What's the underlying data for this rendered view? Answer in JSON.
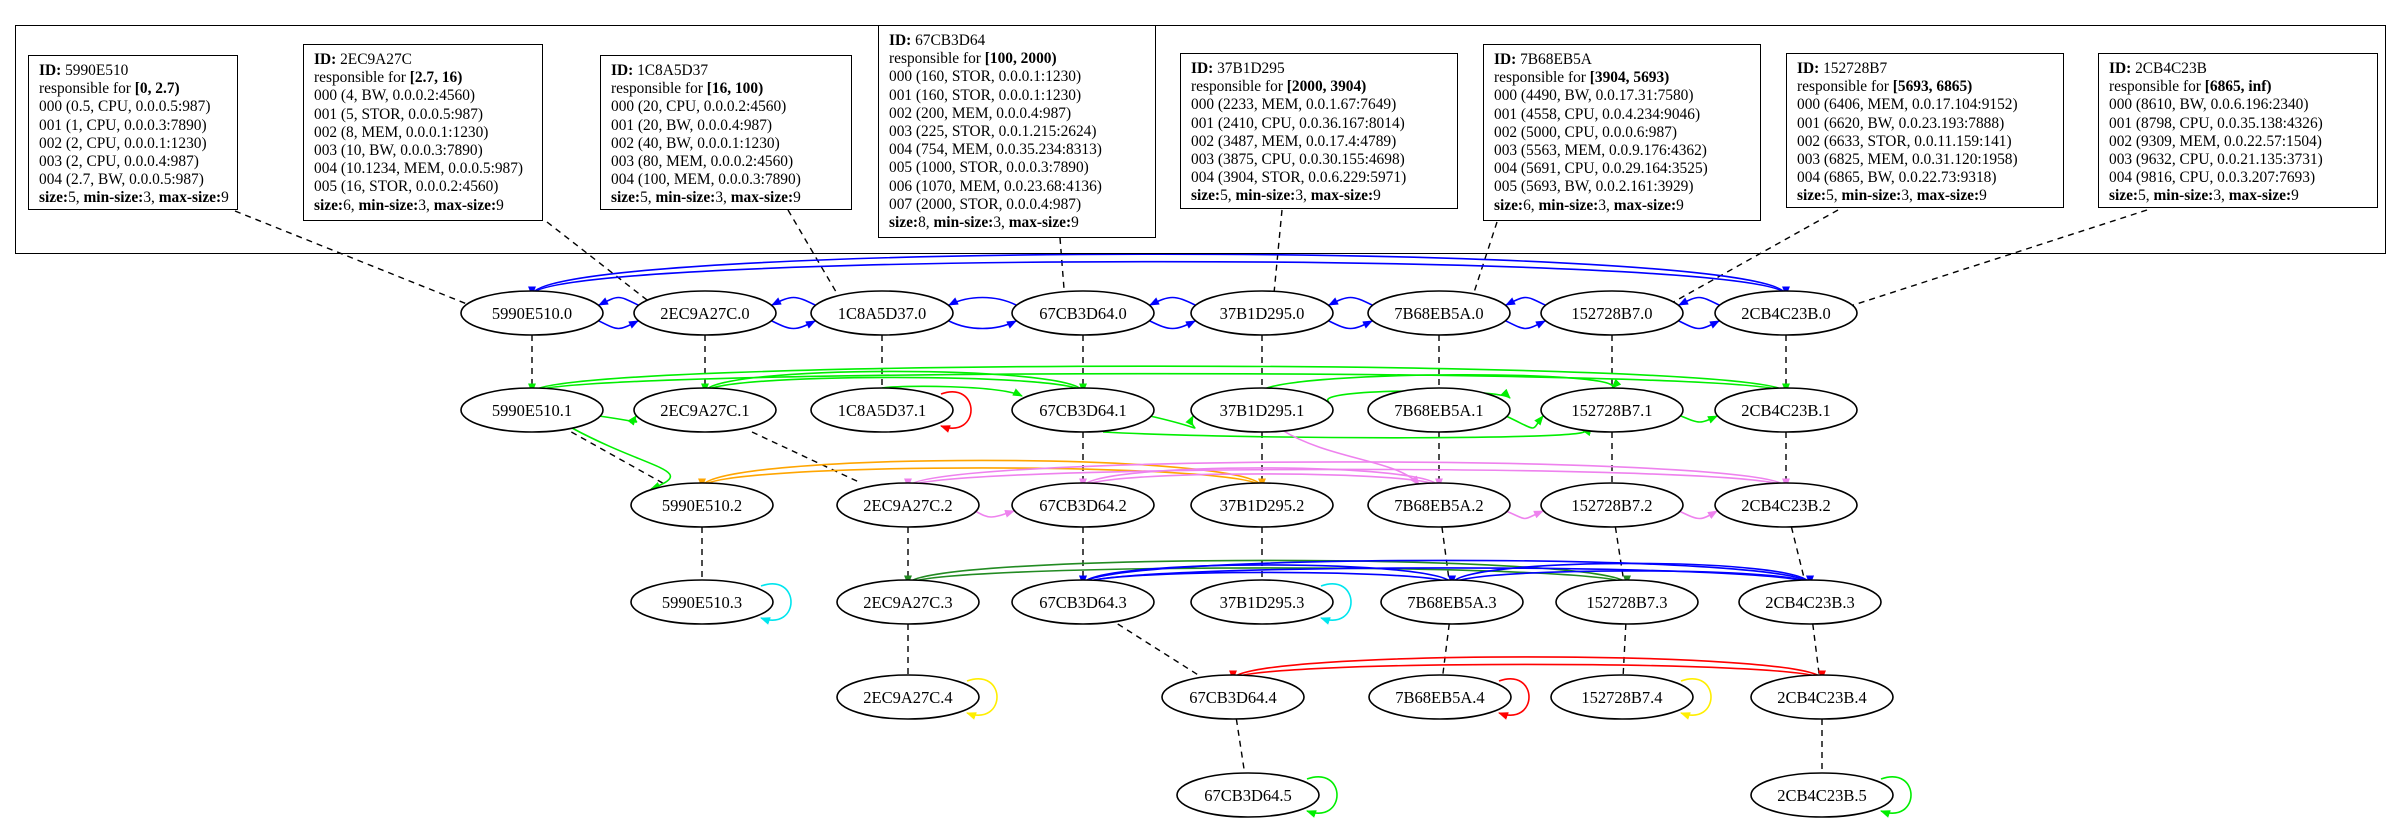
{
  "servers": [
    {
      "id": "5990E510",
      "range": "[0, 2.7)",
      "entries": [
        "000 (0.5, CPU, 0.0.0.5:987)",
        "001 (1, CPU, 0.0.0.3:7890)",
        "002 (2, CPU, 0.0.0.1:1230)",
        "003 (2, CPU, 0.0.0.4:987)",
        "004 (2.7, BW, 0.0.0.5:987)"
      ],
      "size": "5",
      "min_size": "3",
      "max_size": "9"
    },
    {
      "id": "2EC9A27C",
      "range": "[2.7, 16)",
      "entries": [
        "000 (4, BW, 0.0.0.2:4560)",
        "001 (5, STOR, 0.0.0.5:987)",
        "002 (8, MEM, 0.0.0.1:1230)",
        "003 (10, BW, 0.0.0.3:7890)",
        "004 (10.1234, MEM, 0.0.0.5:987)",
        "005 (16, STOR, 0.0.0.2:4560)"
      ],
      "size": "6",
      "min_size": "3",
      "max_size": "9"
    },
    {
      "id": "1C8A5D37",
      "range": "[16, 100)",
      "entries": [
        "000 (20, CPU, 0.0.0.2:4560)",
        "001 (20, BW, 0.0.0.4:987)",
        "002 (40, BW, 0.0.0.1:1230)",
        "003 (80, MEM, 0.0.0.2:4560)",
        "004 (100, MEM, 0.0.0.3:7890)"
      ],
      "size": "5",
      "min_size": "3",
      "max_size": "9"
    },
    {
      "id": "67CB3D64",
      "range": "[100, 2000)",
      "entries": [
        "000 (160, STOR, 0.0.0.1:1230)",
        "001 (160, STOR, 0.0.0.1:1230)",
        "002 (200, MEM, 0.0.0.4:987)",
        "003 (225, STOR, 0.0.1.215:2624)",
        "004 (754, MEM, 0.0.35.234:8313)",
        "005 (1000, STOR, 0.0.0.3:7890)",
        "006 (1070, MEM, 0.0.23.68:4136)",
        "007 (2000, STOR, 0.0.0.4:987)"
      ],
      "size": "8",
      "min_size": "3",
      "max_size": "9"
    },
    {
      "id": "37B1D295",
      "range": "[2000, 3904)",
      "entries": [
        "000 (2233, MEM, 0.0.1.67:7649)",
        "001 (2410, CPU, 0.0.36.167:8014)",
        "002 (3487, MEM, 0.0.17.4:4789)",
        "003 (3875, CPU, 0.0.30.155:4698)",
        "004 (3904, STOR, 0.0.6.229:5971)"
      ],
      "size": "5",
      "min_size": "3",
      "max_size": "9"
    },
    {
      "id": "7B68EB5A",
      "range": "[3904, 5693)",
      "entries": [
        "000 (4490, BW, 0.0.17.31:7580)",
        "001 (4558, CPU, 0.0.4.234:9046)",
        "002 (5000, CPU, 0.0.0.6:987)",
        "003 (5563, MEM, 0.0.9.176:4362)",
        "004 (5691, CPU, 0.0.29.164:3525)",
        "005 (5693, BW, 0.0.2.161:3929)"
      ],
      "size": "6",
      "min_size": "3",
      "max_size": "9"
    },
    {
      "id": "152728B7",
      "range": "[5693, 6865)",
      "entries": [
        "000 (6406, MEM, 0.0.17.104:9152)",
        "001 (6620, BW, 0.0.23.193:7888)",
        "002 (6633, STOR, 0.0.11.159:141)",
        "003 (6825, MEM, 0.0.31.120:1958)",
        "004 (6865, BW, 0.0.22.73:9318)"
      ],
      "size": "5",
      "min_size": "3",
      "max_size": "9"
    },
    {
      "id": "2CB4C23B",
      "range": "[6865, inf)",
      "entries": [
        "000 (8610, BW, 0.0.6.196:2340)",
        "001 (8798, CPU, 0.0.35.138:4326)",
        "002 (9309, MEM, 0.0.22.57:1504)",
        "003 (9632, CPU, 0.0.21.135:3731)",
        "004 (9816, CPU, 0.0.3.207:7693)"
      ],
      "size": "5",
      "min_size": "3",
      "max_size": "9"
    }
  ],
  "labels": {
    "id": "ID:",
    "responsible": "responsible for",
    "size": "size:",
    "min_size": "min-size:",
    "max_size": "max-size:"
  },
  "nodes": [
    {
      "label": "5990E510.0"
    },
    {
      "label": "2EC9A27C.0"
    },
    {
      "label": "1C8A5D37.0"
    },
    {
      "label": "67CB3D64.0"
    },
    {
      "label": "37B1D295.0"
    },
    {
      "label": "7B68EB5A.0"
    },
    {
      "label": "152728B7.0"
    },
    {
      "label": "2CB4C23B.0"
    },
    {
      "label": "5990E510.1"
    },
    {
      "label": "2EC9A27C.1"
    },
    {
      "label": "1C8A5D37.1"
    },
    {
      "label": "67CB3D64.1"
    },
    {
      "label": "37B1D295.1"
    },
    {
      "label": "7B68EB5A.1"
    },
    {
      "label": "152728B7.1"
    },
    {
      "label": "2CB4C23B.1"
    },
    {
      "label": "5990E510.2"
    },
    {
      "label": "2EC9A27C.2"
    },
    {
      "label": "67CB3D64.2"
    },
    {
      "label": "37B1D295.2"
    },
    {
      "label": "7B68EB5A.2"
    },
    {
      "label": "152728B7.2"
    },
    {
      "label": "2CB4C23B.2"
    },
    {
      "label": "5990E510.3"
    },
    {
      "label": "2EC9A27C.3"
    },
    {
      "label": "67CB3D64.3"
    },
    {
      "label": "37B1D295.3"
    },
    {
      "label": "7B68EB5A.3"
    },
    {
      "label": "152728B7.3"
    },
    {
      "label": "2CB4C23B.3"
    },
    {
      "label": "2EC9A27C.4"
    },
    {
      "label": "67CB3D64.4"
    },
    {
      "label": "7B68EB5A.4"
    },
    {
      "label": "152728B7.4"
    },
    {
      "label": "2CB4C23B.4"
    },
    {
      "label": "67CB3D64.5"
    },
    {
      "label": "2CB4C23B.5"
    }
  ],
  "colors": {
    "level0": "#0000ff",
    "level1": "#00ee00",
    "level2_orange": "#ffa500",
    "level2_violet": "#ee82ee",
    "level3_green": "#228b22",
    "level3_blue": "#0000ff",
    "level4": "#ff0000",
    "self_cyan": "#00e5ee",
    "self_yellow": "#ffee00",
    "self_red": "#ff0000",
    "self_green": "#00ee00",
    "dashed": "#000000"
  }
}
